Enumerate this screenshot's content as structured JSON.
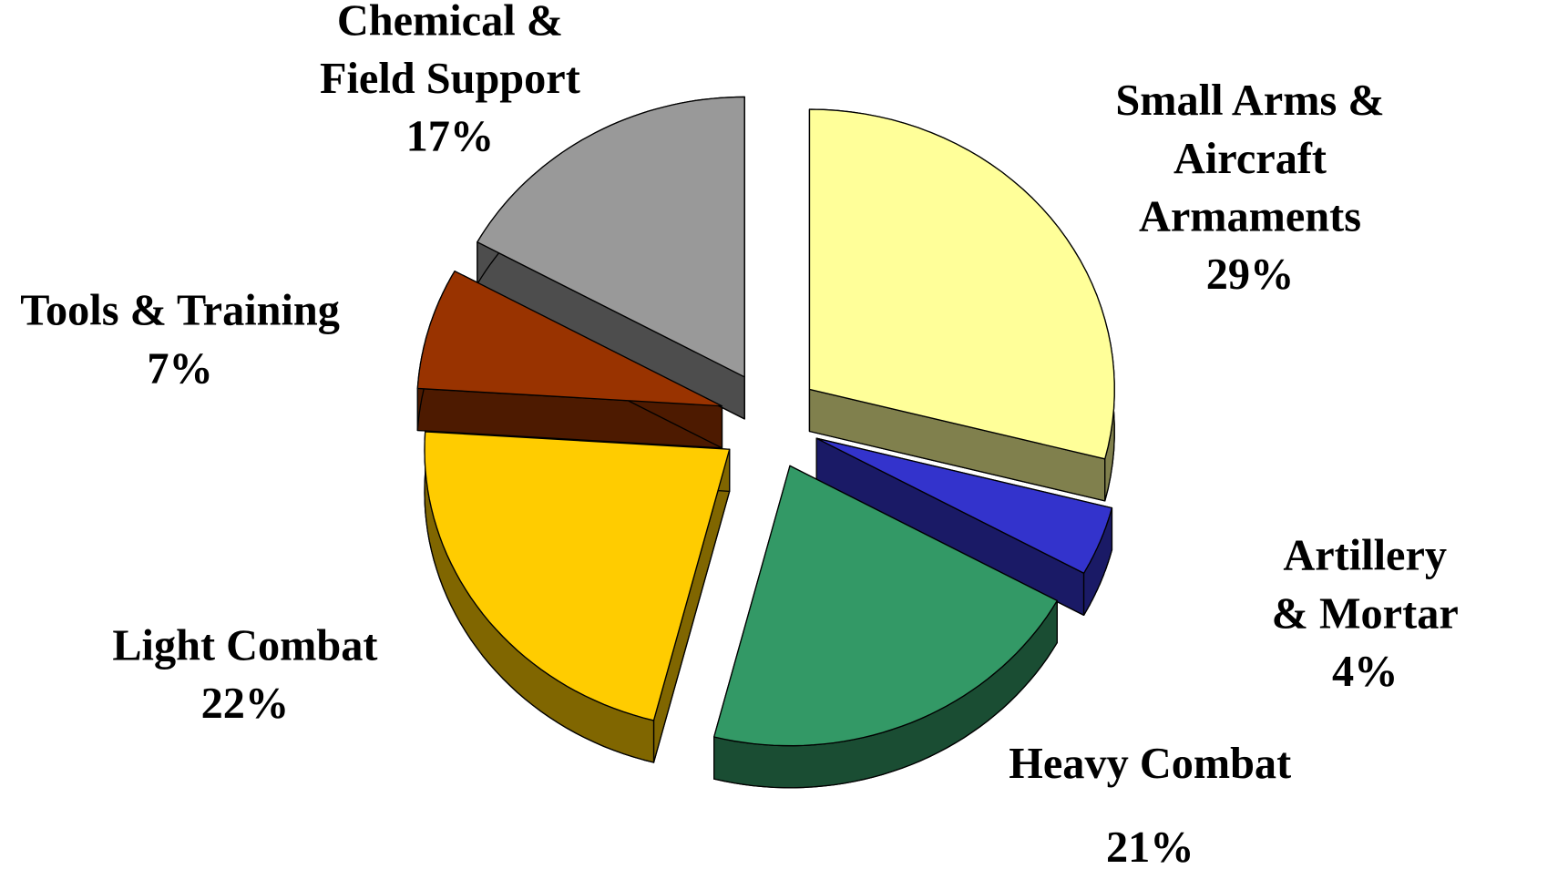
{
  "chart_data": {
    "type": "pie3d",
    "categories": [
      "Small Arms &\nAircraft Armaments",
      "Artillery & Mortar",
      "Heavy Combat",
      "Light Combat",
      "Tools & Training",
      "Chemical &\nField Support"
    ],
    "values": [
      29,
      4,
      21,
      22,
      7,
      17
    ],
    "value_labels": [
      "29%",
      "4%",
      "21%",
      "22%",
      "7%",
      "17%"
    ],
    "colors": [
      "#ffff99",
      "#3333cc",
      "#339966",
      "#ffcc00",
      "#993300",
      "#999999"
    ]
  }
}
